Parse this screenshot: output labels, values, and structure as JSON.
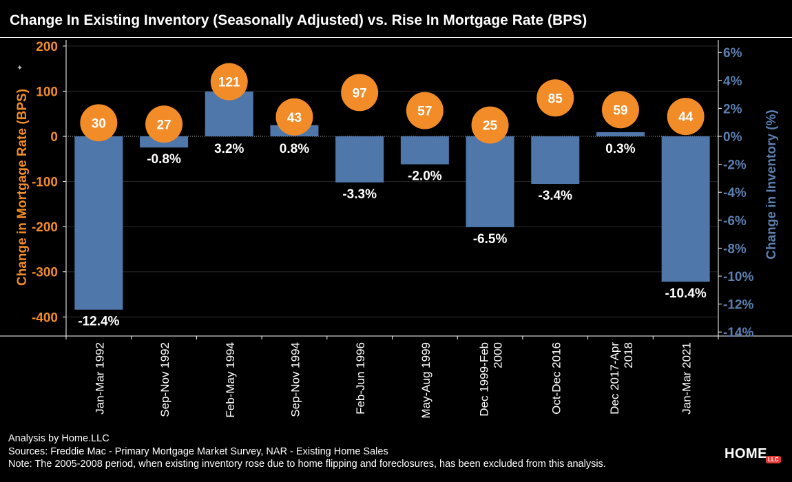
{
  "title": "Change In Existing Inventory (Seasonally Adjusted) vs. Rise In Mortgage Rate (BPS)",
  "colors": {
    "background": "#000000",
    "bar": "#4f77aa",
    "bubble": "#f28c28",
    "left_axis": "#f28c28",
    "right_axis": "#5b7fb0"
  },
  "chart_data": {
    "type": "bar",
    "categories": [
      "Jan-Mar 1992",
      "Sep-Nov 1992",
      "Feb-May 1994",
      "Sep-Nov 1994",
      "Feb-Jun 1996",
      "May-Aug 1999",
      "Dec 1999-Feb 2000",
      "Oct-Dec 2016",
      "Dec 2017-Apr 2018",
      "Jan-Mar 2021"
    ],
    "series": [
      {
        "name": "Change in Inventory (%)",
        "type": "bar",
        "axis": "right",
        "values": [
          -12.4,
          -0.8,
          3.2,
          0.8,
          -3.3,
          -2.0,
          -6.5,
          -3.4,
          0.3,
          -10.4
        ],
        "labels": [
          "-12.4%",
          "-0.8%",
          "3.2%",
          "0.8%",
          "-3.3%",
          "-2.0%",
          "-6.5%",
          "-3.4%",
          "0.3%",
          "-10.4%"
        ]
      },
      {
        "name": "Change in Mortgage Rate (BPS)",
        "type": "scatter",
        "axis": "left",
        "values": [
          30,
          27,
          121,
          43,
          97,
          57,
          25,
          85,
          59,
          44
        ],
        "labels": [
          "30",
          "27",
          "121",
          "43",
          "97",
          "57",
          "25",
          "85",
          "59",
          "44"
        ]
      }
    ],
    "ylabel_left": "Change in Mortgage Rate (BPS)",
    "ylabel_right": "Change in Inventory (%)",
    "ylim_left": [
      -440,
      210
    ],
    "ylim_right": [
      -14,
      6.6
    ],
    "left_ticks": [
      200,
      100,
      0,
      -100,
      -200,
      -300,
      -400
    ],
    "left_tick_labels": [
      "200",
      "100",
      "0",
      "-100",
      "-200",
      "-300",
      "-400"
    ],
    "right_ticks": [
      6,
      4,
      2,
      0,
      -2,
      -4,
      -6,
      -8,
      -10,
      -12,
      -14
    ],
    "right_tick_labels": [
      "6%",
      "4%",
      "2%",
      "0%",
      "-2%",
      "-4%",
      "-6%",
      "-8%",
      "-10%",
      "-12%",
      "-14%"
    ],
    "grid": true
  },
  "notes": [
    "Analysis by Home.LLC",
    "Sources: Freddie Mac - Primary Mortgage Market Survey, NAR - Existing Home Sales",
    "Note: The 2005-2008 period, when existing inventory rose due to home flipping and foreclosures, has been excluded from this analysis."
  ],
  "logo": {
    "text": "HOME",
    "badge": "LLC"
  }
}
